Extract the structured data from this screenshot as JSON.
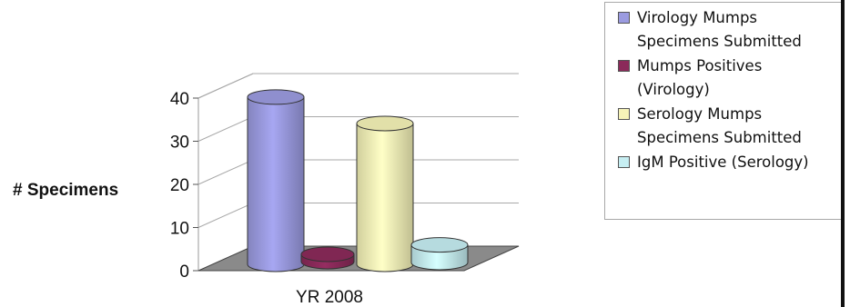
{
  "chart_data": {
    "type": "bar",
    "style": "3d-cylinder",
    "title": "",
    "xlabel": "",
    "ylabel": "# Specimens",
    "categories": [
      "YR 2008"
    ],
    "ylim": [
      0,
      40
    ],
    "yticks": [
      0,
      10,
      20,
      30,
      40
    ],
    "grid": true,
    "legend_position": "top-right",
    "series": [
      {
        "name": "Virology Mumps Specimens Submitted",
        "values": [
          38
        ],
        "color": "#9b9be0"
      },
      {
        "name": "Mumps Positives (Virology)",
        "values": [
          1
        ],
        "color": "#8b2a5a"
      },
      {
        "name": "Serology Mumps Specimens Submitted",
        "values": [
          32
        ],
        "color": "#f6f3b8"
      },
      {
        "name": "IgM Positive (Serology)",
        "values": [
          4
        ],
        "color": "#c6eef2"
      }
    ]
  },
  "legend": {
    "items": [
      {
        "line1": "Virology Mumps",
        "line2": "Specimens Submitted",
        "color": "#9b9be0"
      },
      {
        "line1": "Mumps Positives",
        "line2": "(Virology)",
        "color": "#8b2a5a"
      },
      {
        "line1": "Serology Mumps",
        "line2": "Specimens Submitted",
        "color": "#f6f3b8"
      },
      {
        "line1": "IgM Positive (Serology)",
        "line2": "",
        "color": "#c6eef2"
      }
    ]
  }
}
